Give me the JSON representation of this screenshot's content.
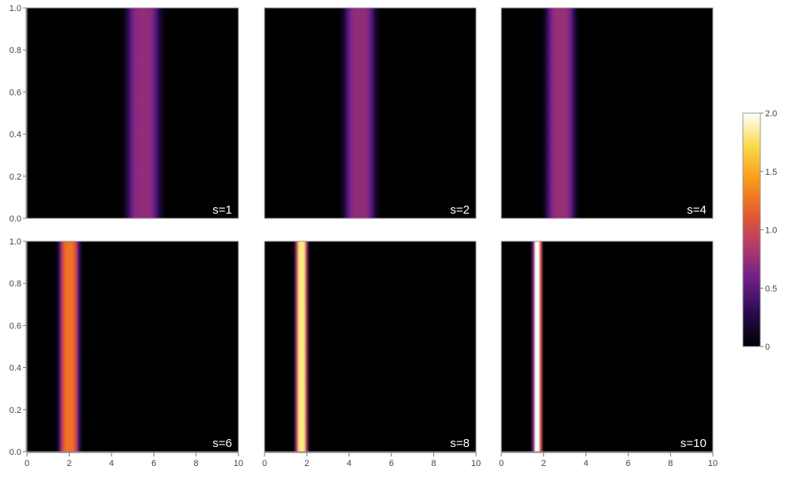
{
  "chart_data": {
    "type": "heatmap",
    "layout": "2x3 grid of density plots sharing axes and one color legend",
    "colormap": "inferno-like (black → purple → red → orange → yellow → white)",
    "colormap_stops": [
      "#000000",
      "#2a0b4e",
      "#6b1f8a",
      "#b33a6b",
      "#e65c2c",
      "#f99a1a",
      "#fbd84a",
      "#ffffff"
    ],
    "value_range": [
      0,
      2.0
    ],
    "colorbar": {
      "ticks": [
        0,
        0.5,
        1.0,
        1.5,
        2.0
      ],
      "tick_labels": [
        "0",
        "0.5",
        "1.0",
        "1.5",
        "2.0"
      ]
    },
    "x_range": [
      0,
      10
    ],
    "y_range": [
      0,
      1.0
    ],
    "x_ticks": [
      0,
      2,
      4,
      6,
      8,
      10
    ],
    "x_tick_labels": [
      "0",
      "2",
      "4",
      "6",
      "8",
      "10"
    ],
    "y_ticks": [
      0,
      0.2,
      0.4,
      0.6,
      0.8,
      1.0
    ],
    "y_tick_labels": [
      "0.0",
      "0.2",
      "0.4",
      "0.6",
      "0.8",
      "1.0"
    ],
    "panels": [
      {
        "label": "s=1",
        "center": 5.5,
        "sigma": 0.75,
        "peak": 0.72
      },
      {
        "label": "s=2",
        "center": 4.5,
        "sigma": 0.7,
        "peak": 0.72
      },
      {
        "label": "s=4",
        "center": 2.8,
        "sigma": 0.65,
        "peak": 0.75
      },
      {
        "label": "s=6",
        "center": 2.0,
        "sigma": 0.45,
        "peak": 1.25
      },
      {
        "label": "s=8",
        "center": 1.75,
        "sigma": 0.26,
        "peak": 1.85
      },
      {
        "label": "s=10",
        "center": 1.7,
        "sigma": 0.19,
        "peak": 2.0
      }
    ]
  }
}
